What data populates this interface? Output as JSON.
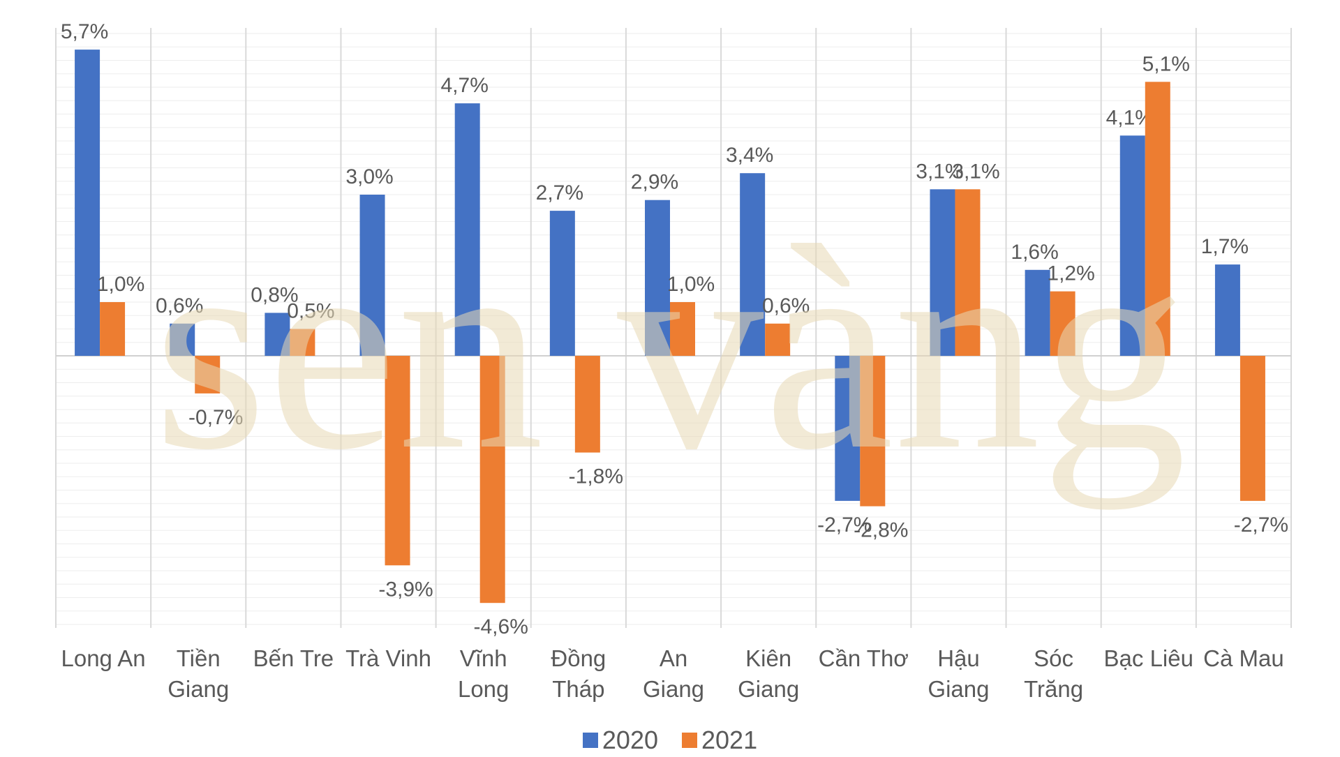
{
  "chart_data": {
    "type": "bar",
    "categories": [
      [
        "Long An"
      ],
      [
        "Tiền",
        "Giang"
      ],
      [
        "Bến Tre"
      ],
      [
        "Trà Vinh"
      ],
      [
        "Vĩnh",
        "Long"
      ],
      [
        "Đồng",
        "Tháp"
      ],
      [
        "An",
        "Giang"
      ],
      [
        "Kiên",
        "Giang"
      ],
      [
        "Cần Thơ"
      ],
      [
        "Hậu",
        "Giang"
      ],
      [
        "Sóc",
        "Trăng"
      ],
      [
        "Bạc Liêu"
      ],
      [
        "Cà Mau"
      ]
    ],
    "series": [
      {
        "name": "2020",
        "color": "#4472C4",
        "values": [
          5.7,
          0.6,
          0.8,
          3.0,
          4.7,
          2.7,
          2.9,
          3.4,
          -2.7,
          3.1,
          1.6,
          4.1,
          1.7
        ],
        "labels": [
          "5,7%",
          "0,6%",
          "0,8%",
          "3,0%",
          "4,7%",
          "2,7%",
          "2,9%",
          "3,4%",
          "-2,7%",
          "3,1%",
          "1,6%",
          "4,1%",
          "1,7%"
        ]
      },
      {
        "name": "2021",
        "color": "#ED7D31",
        "values": [
          1.0,
          -0.7,
          0.5,
          -3.9,
          -4.6,
          -1.8,
          1.0,
          0.6,
          -2.8,
          3.1,
          1.2,
          5.1,
          -2.7
        ],
        "labels": [
          "1,0%",
          "-0,7%",
          "0,5%",
          "-3,9%",
          "-4,6%",
          "-1,8%",
          "1,0%",
          "0,6%",
          "-2,8%",
          "3,1%",
          "1,2%",
          "5,1%",
          "-2,7%"
        ]
      }
    ],
    "ylim": [
      -5.0,
      6.0
    ],
    "grid": true,
    "legend_position": "bottom-center"
  },
  "watermark": {
    "text": "sen vàng",
    "color": "#E8D9B5"
  }
}
